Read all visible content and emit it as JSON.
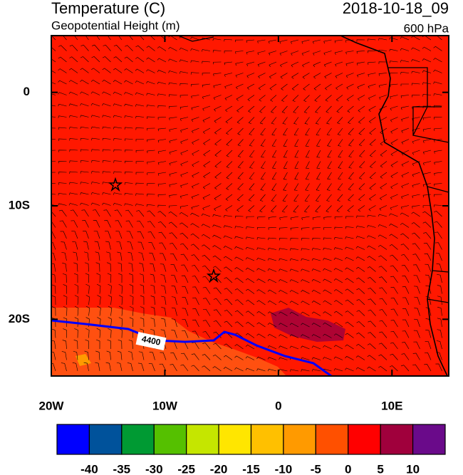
{
  "chart_data": {
    "type": "map",
    "title": "Temperature (C)",
    "subtitle": "Geopotential Height (m)",
    "time_label": "2018-10-18_09",
    "level_label": "600 hPa",
    "xlim": [
      -20,
      15
    ],
    "ylim": [
      -25,
      5
    ],
    "xticks": [
      {
        "value": -20,
        "label": "20W"
      },
      {
        "value": -10,
        "label": "10W"
      },
      0,
      {
        "value": 10,
        "label": "10E"
      }
    ],
    "yticks": [
      0,
      {
        "value": -10,
        "label": "10S"
      },
      {
        "value": -20,
        "label": "20S"
      }
    ],
    "contours": [
      {
        "value": 4400,
        "color": "#0000ff"
      }
    ],
    "colorbar": {
      "levels": [
        -40,
        -35,
        -30,
        -25,
        -20,
        -15,
        -10,
        -5,
        0,
        5,
        10
      ],
      "colors": [
        "#0000ff",
        "#00529b",
        "#009a33",
        "#55c000",
        "#c5e600",
        "#ffe600",
        "#ffc000",
        "#ff9a00",
        "#ff5000",
        "#ff0000",
        "#a0003c",
        "#6a0a8a"
      ]
    }
  }
}
